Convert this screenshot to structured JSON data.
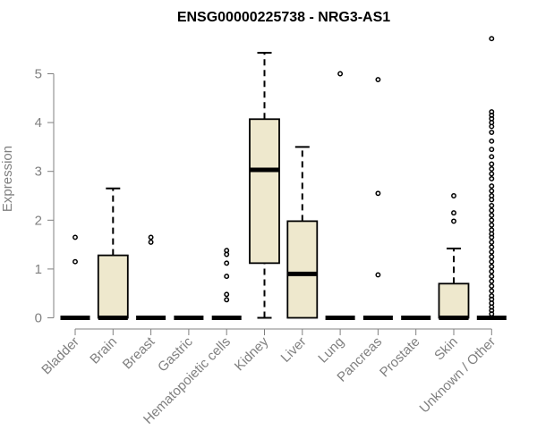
{
  "chart_data": {
    "type": "boxplot",
    "title": "ENSG00000225738 - NRG3-AS1",
    "ylabel": "Expression",
    "xlabel": "",
    "ylim": [
      0,
      5.8
    ],
    "y_ticks": [
      "0",
      "1",
      "2",
      "3",
      "4",
      "5"
    ],
    "grid": false,
    "legend": "none",
    "colors": {
      "box_fill": "#EEE8CD",
      "box_stroke": "#000000",
      "axis": "#808080",
      "tick_label": "#808080",
      "title": "#000000"
    },
    "categories": [
      "Bladder",
      "Brain",
      "Breast",
      "Gastric",
      "Hematopoietic cells",
      "Kidney",
      "Liver",
      "Lung",
      "Pancreas",
      "Prostate",
      "Skin",
      "Unknown / Other"
    ],
    "boxes": [
      {
        "q1": 0,
        "median": 0,
        "q3": 0,
        "whisker_low": 0,
        "whisker_high": 0,
        "outliers": [
          1.65,
          1.15
        ]
      },
      {
        "q1": 0,
        "median": 0,
        "q3": 1.28,
        "whisker_low": 0,
        "whisker_high": 2.65,
        "outliers": []
      },
      {
        "q1": 0,
        "median": 0,
        "q3": 0,
        "whisker_low": 0,
        "whisker_high": 0,
        "outliers": [
          1.65,
          1.55
        ]
      },
      {
        "q1": 0,
        "median": 0,
        "q3": 0,
        "whisker_low": 0,
        "whisker_high": 0,
        "outliers": []
      },
      {
        "q1": 0,
        "median": 0,
        "q3": 0,
        "whisker_low": 0,
        "whisker_high": 0,
        "outliers": [
          1.38,
          1.3,
          1.12,
          0.85,
          0.48,
          0.37
        ]
      },
      {
        "q1": 1.12,
        "median": 3.03,
        "q3": 4.07,
        "whisker_low": 0,
        "whisker_high": 5.43,
        "outliers": []
      },
      {
        "q1": 0,
        "median": 0.9,
        "q3": 1.98,
        "whisker_low": 0,
        "whisker_high": 3.5,
        "outliers": []
      },
      {
        "q1": 0,
        "median": 0,
        "q3": 0,
        "whisker_low": 0,
        "whisker_high": 0,
        "outliers": [
          5.0
        ]
      },
      {
        "q1": 0,
        "median": 0,
        "q3": 0,
        "whisker_low": 0,
        "whisker_high": 0,
        "outliers": [
          4.88,
          2.55,
          0.88
        ]
      },
      {
        "q1": 0,
        "median": 0,
        "q3": 0,
        "whisker_low": 0,
        "whisker_high": 0,
        "outliers": []
      },
      {
        "q1": 0,
        "median": 0,
        "q3": 0.7,
        "whisker_low": 0,
        "whisker_high": 1.42,
        "outliers": [
          2.5,
          2.15,
          1.98
        ]
      },
      {
        "q1": 0,
        "median": 0,
        "q3": 0,
        "whisker_low": 0,
        "whisker_high": 0,
        "outliers": [
          5.72,
          4.22,
          4.15,
          4.08,
          4.0,
          3.92,
          3.8,
          3.62,
          3.45,
          3.3,
          3.15,
          3.05,
          2.95,
          2.85,
          2.7,
          2.6,
          2.5,
          2.42,
          2.3,
          2.2,
          2.1,
          2.0,
          1.9,
          1.8,
          1.72,
          1.65,
          1.55,
          1.45,
          1.35,
          1.25,
          1.15,
          1.05,
          0.95,
          0.85,
          0.75,
          0.65,
          0.55,
          0.45,
          0.38,
          0.3,
          0.22,
          0.15,
          0.08
        ]
      }
    ]
  }
}
